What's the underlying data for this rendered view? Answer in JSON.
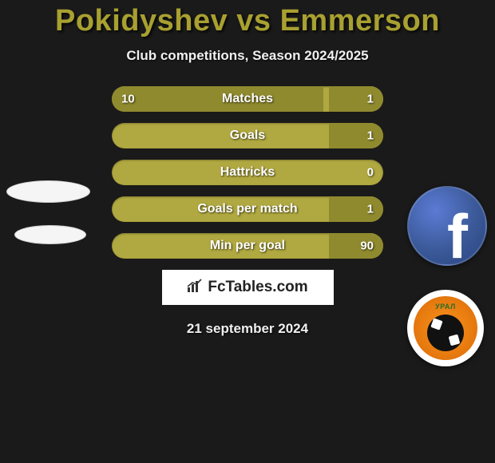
{
  "header": {
    "title": "Pokidyshev vs Emmerson",
    "subtitle": "Club competitions, Season 2024/2025",
    "title_color": "#a8a030"
  },
  "stats": [
    {
      "label": "Matches",
      "left_val": "10",
      "right_val": "1",
      "left_pct": 78,
      "right_pct": 20
    },
    {
      "label": "Goals",
      "left_val": "",
      "right_val": "1",
      "left_pct": 0,
      "right_pct": 20
    },
    {
      "label": "Hattricks",
      "left_val": "",
      "right_val": "0",
      "left_pct": 0,
      "right_pct": 0
    },
    {
      "label": "Goals per match",
      "left_val": "",
      "right_val": "1",
      "left_pct": 0,
      "right_pct": 20
    },
    {
      "label": "Min per goal",
      "left_val": "",
      "right_val": "90",
      "left_pct": 0,
      "right_pct": 20
    }
  ],
  "colors": {
    "bar_bg": "#b0a840",
    "bar_fill": "#8f8a2e",
    "page_bg": "#1a1a1a"
  },
  "footer": {
    "site_label": "FcTables.com",
    "date": "21 september 2024"
  },
  "badges": {
    "facebook_name": "facebook",
    "club_name": "ural-club"
  }
}
